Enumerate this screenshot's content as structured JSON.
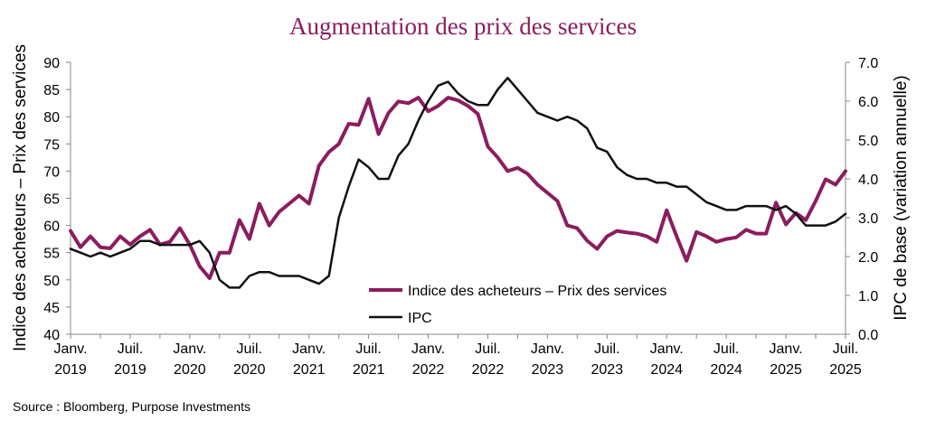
{
  "chart_data": {
    "type": "line",
    "title": "Augmentation des prix des services",
    "source": "Source : Bloomberg, Purpose Investments",
    "title_color": "#8B1D5E",
    "left_axis": {
      "label": "Indice des acheteurs – Prix des services",
      "ylim": [
        40,
        90
      ],
      "ticks": [
        "40",
        "45",
        "50",
        "55",
        "60",
        "65",
        "70",
        "75",
        "80",
        "85",
        "90"
      ]
    },
    "right_axis": {
      "label": "IPC de base (variation annuelle)",
      "ylim": [
        0.0,
        7.0
      ],
      "ticks": [
        "0.0",
        "1.0",
        "2.0",
        "3.0",
        "4.0",
        "5.0",
        "6.0",
        "7.0"
      ]
    },
    "x_ticks": [
      {
        "month": 0,
        "line1": "Janv.",
        "line2": "2019"
      },
      {
        "month": 6,
        "line1": "Juil.",
        "line2": "2019"
      },
      {
        "month": 12,
        "line1": "Janv.",
        "line2": "2020"
      },
      {
        "month": 18,
        "line1": "Juil.",
        "line2": "2020"
      },
      {
        "month": 24,
        "line1": "Janv.",
        "line2": "2021"
      },
      {
        "month": 30,
        "line1": "Juil.",
        "line2": "2021"
      },
      {
        "month": 36,
        "line1": "Janv.",
        "line2": "2022"
      },
      {
        "month": 42,
        "line1": "Juil.",
        "line2": "2022"
      },
      {
        "month": 48,
        "line1": "Janv.",
        "line2": "2023"
      },
      {
        "month": 54,
        "line1": "Juil.",
        "line2": "2023"
      },
      {
        "month": 60,
        "line1": "Janv.",
        "line2": "2024"
      },
      {
        "month": 66,
        "line1": "Juil.",
        "line2": "2024"
      },
      {
        "month": 72,
        "line1": "Janv.",
        "line2": "2025"
      },
      {
        "month": 78,
        "line1": "Juil.",
        "line2": "2025"
      }
    ],
    "x_start": "Janv. 2019",
    "x_end": "Juil. 2025",
    "legend_position": "center-bottom",
    "series": [
      {
        "name": "Indice des acheteurs – Prix des services",
        "axis": "left",
        "color": "#8B1D5E",
        "values": [
          59,
          56,
          58,
          56,
          55.8,
          58,
          56.5,
          58,
          59.2,
          56.5,
          57,
          59.5,
          56.5,
          52.5,
          50.3,
          55,
          55,
          61,
          57.5,
          64,
          60,
          62.5,
          64,
          65.5,
          64,
          71,
          73.5,
          75,
          78.7,
          78.5,
          83.3,
          76.8,
          80.7,
          82.8,
          82.5,
          83.5,
          81,
          82,
          83.5,
          83,
          82,
          80.5,
          74.5,
          72.5,
          70,
          70.6,
          69.5,
          67.5,
          66,
          64.5,
          60,
          59.5,
          57.2,
          55.7,
          58,
          59,
          58.7,
          58.5,
          58,
          57,
          62.8,
          58,
          53.5,
          58.8,
          58,
          57,
          57.5,
          57.8,
          59.2,
          58.5,
          58.5,
          64.2,
          60.2,
          62.3,
          61,
          64.5,
          68.5,
          67.5,
          70
        ]
      },
      {
        "name": "IPC",
        "axis": "right",
        "color": "#111111",
        "values": [
          2.2,
          2.1,
          2.0,
          2.1,
          2.0,
          2.1,
          2.2,
          2.4,
          2.4,
          2.3,
          2.3,
          2.3,
          2.3,
          2.4,
          2.1,
          1.4,
          1.2,
          1.2,
          1.5,
          1.6,
          1.6,
          1.5,
          1.5,
          1.5,
          1.4,
          1.3,
          1.5,
          3.0,
          3.8,
          4.5,
          4.3,
          4.0,
          4.0,
          4.6,
          4.9,
          5.5,
          6.0,
          6.4,
          6.5,
          6.2,
          6.0,
          5.9,
          5.9,
          6.3,
          6.6,
          6.3,
          6.0,
          5.7,
          5.6,
          5.5,
          5.6,
          5.5,
          5.3,
          4.8,
          4.7,
          4.3,
          4.1,
          4.0,
          4.0,
          3.9,
          3.9,
          3.8,
          3.8,
          3.6,
          3.4,
          3.3,
          3.2,
          3.2,
          3.3,
          3.3,
          3.3,
          3.2,
          3.3,
          3.1,
          2.8,
          2.8,
          2.8,
          2.9,
          3.1
        ]
      }
    ]
  }
}
